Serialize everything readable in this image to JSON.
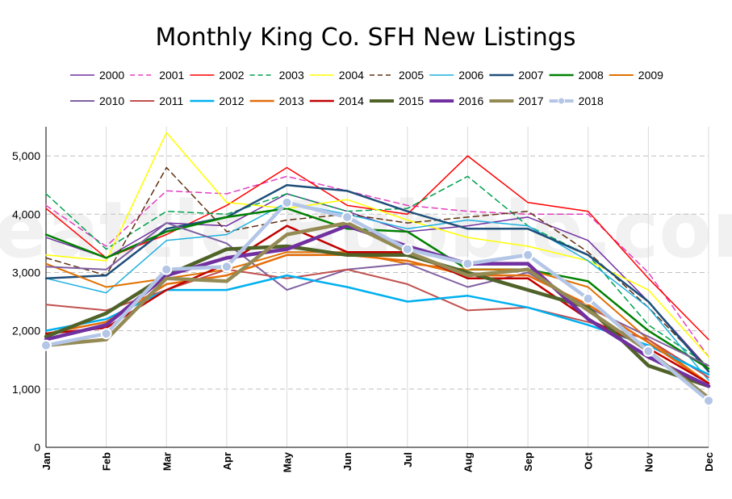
{
  "chart_data": {
    "type": "line",
    "title": "Monthly King Co. SFH New Listings",
    "watermark": "Seattle Bubble.com",
    "categories": [
      "Jan",
      "Feb",
      "Mar",
      "Apr",
      "May",
      "Jun",
      "Jul",
      "Aug",
      "Sep",
      "Oct",
      "Nov",
      "Dec"
    ],
    "ylim": [
      0,
      5500
    ],
    "yticks": [
      0,
      1000,
      2000,
      3000,
      4000,
      5000
    ],
    "ytick_labels": [
      "0",
      "1,000",
      "2,000",
      "3,000",
      "4,000",
      "5,000"
    ],
    "grid": true,
    "legend_position": "top",
    "series": [
      {
        "name": "2000",
        "color": "#7030a0",
        "dash": "solid",
        "width": 1.5,
        "values": [
          3600,
          3250,
          3850,
          3800,
          4350,
          4050,
          3700,
          3800,
          3950,
          3550,
          2500,
          1350
        ]
      },
      {
        "name": "2001",
        "color": "#e040c0",
        "dash": "dashed",
        "width": 1.5,
        "values": [
          4150,
          3450,
          4400,
          4350,
          4650,
          4400,
          4150,
          4050,
          4000,
          4000,
          3000,
          1550
        ]
      },
      {
        "name": "2002",
        "color": "#ff0000",
        "dash": "solid",
        "width": 1.5,
        "values": [
          4100,
          3250,
          3650,
          4150,
          4800,
          4150,
          4000,
          5000,
          4200,
          4050,
          2900,
          1850
        ]
      },
      {
        "name": "2003",
        "color": "#00a050",
        "dash": "dashed",
        "width": 1.5,
        "values": [
          4350,
          3400,
          4050,
          4000,
          4350,
          4050,
          4100,
          4650,
          3800,
          3300,
          2100,
          1400
        ]
      },
      {
        "name": "2004",
        "color": "#ffff00",
        "dash": "solid",
        "width": 1.5,
        "values": [
          3300,
          3200,
          5400,
          4200,
          4100,
          4250,
          3900,
          3600,
          3450,
          3200,
          2700,
          1550
        ]
      },
      {
        "name": "2005",
        "color": "#603010",
        "dash": "dashed",
        "width": 1.5,
        "values": [
          3250,
          2950,
          4800,
          3700,
          3900,
          4000,
          3850,
          3950,
          4050,
          3350,
          2400,
          1350
        ]
      },
      {
        "name": "2006",
        "color": "#1fb0e0",
        "dash": "solid",
        "width": 1.5,
        "values": [
          2900,
          2650,
          3550,
          3650,
          4200,
          4000,
          3750,
          3900,
          3800,
          3200,
          2400,
          1150
        ]
      },
      {
        "name": "2007",
        "color": "#1f4e79",
        "dash": "solid",
        "width": 2.5,
        "values": [
          2900,
          2950,
          3750,
          3950,
          4500,
          4400,
          4050,
          3750,
          3750,
          3300,
          2500,
          1300
        ]
      },
      {
        "name": "2008",
        "color": "#008000",
        "dash": "solid",
        "width": 2.5,
        "values": [
          3650,
          3250,
          3700,
          3950,
          4100,
          3750,
          3700,
          3050,
          3050,
          2850,
          2000,
          1350
        ]
      },
      {
        "name": "2009",
        "color": "#e07000",
        "dash": "solid",
        "width": 2,
        "values": [
          3150,
          2750,
          2900,
          3050,
          3350,
          3350,
          3150,
          3050,
          3050,
          2750,
          1850,
          1100
        ]
      },
      {
        "name": "2010",
        "color": "#8060a0",
        "dash": "solid",
        "width": 2,
        "values": [
          3100,
          3050,
          3850,
          3500,
          2700,
          3050,
          3150,
          2750,
          3000,
          2400,
          1900,
          1400
        ]
      },
      {
        "name": "2011",
        "color": "#c0504d",
        "dash": "solid",
        "width": 2,
        "values": [
          2450,
          2350,
          2700,
          3050,
          2900,
          3050,
          2800,
          2350,
          2400,
          2150,
          1850,
          1200
        ]
      },
      {
        "name": "2012",
        "color": "#00b0f0",
        "dash": "solid",
        "width": 2.5,
        "values": [
          2000,
          2200,
          2700,
          2700,
          2950,
          2750,
          2500,
          2600,
          2400,
          2100,
          1750,
          1250
        ]
      },
      {
        "name": "2013",
        "color": "#e46c0a",
        "dash": "solid",
        "width": 2.5,
        "values": [
          1950,
          2150,
          2800,
          2950,
          3300,
          3300,
          3200,
          2950,
          2950,
          2450,
          1800,
          1100
        ]
      },
      {
        "name": "2014",
        "color": "#c00000",
        "dash": "solid",
        "width": 2.5,
        "values": [
          1950,
          2050,
          2700,
          3150,
          3800,
          3350,
          3350,
          2900,
          2900,
          2200,
          1700,
          1100
        ]
      },
      {
        "name": "2015",
        "color": "#4f6228",
        "dash": "solid",
        "width": 4.5,
        "values": [
          1900,
          2300,
          2950,
          3400,
          3450,
          3300,
          3300,
          3000,
          2700,
          2400,
          1400,
          1050
        ]
      },
      {
        "name": "2016",
        "color": "#7030a0",
        "dash": "solid",
        "width": 4.5,
        "values": [
          1850,
          2100,
          2950,
          3250,
          3400,
          3800,
          3450,
          3150,
          3150,
          2200,
          1550,
          1050
        ]
      },
      {
        "name": "2017",
        "color": "#948a54",
        "dash": "solid",
        "width": 4.5,
        "values": [
          1750,
          1850,
          2900,
          2850,
          3650,
          3850,
          3350,
          2950,
          3050,
          2350,
          1650,
          850
        ]
      },
      {
        "name": "2018",
        "color": "#b4c6e7",
        "dash": "dotted-marker",
        "width": 4.5,
        "values": [
          1750,
          1950,
          3050,
          3100,
          4200,
          3950,
          3400,
          3150,
          3300,
          2550,
          1650,
          800
        ]
      }
    ]
  }
}
